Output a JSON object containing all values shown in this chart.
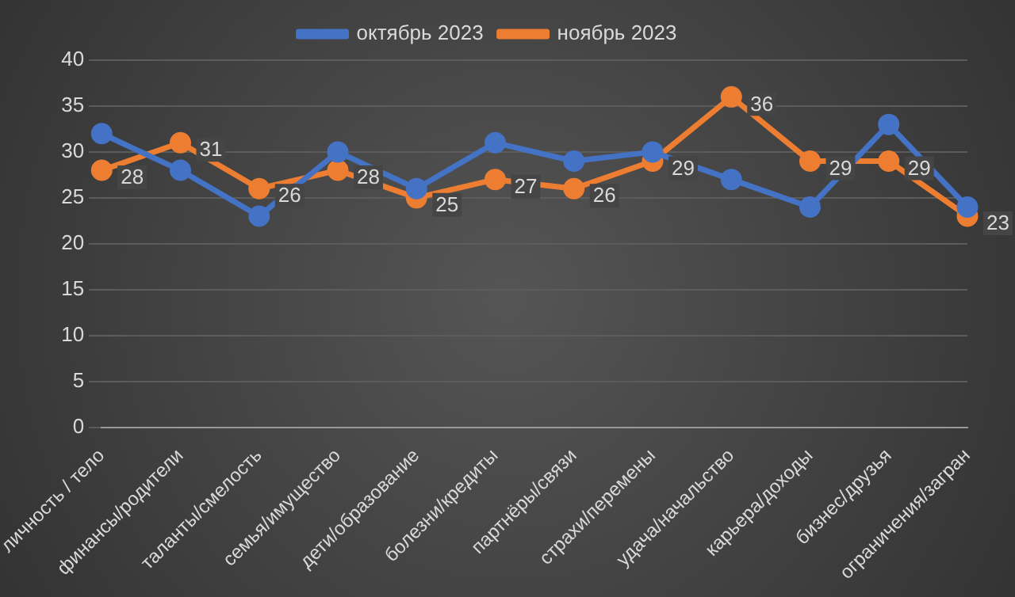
{
  "chart_data": {
    "type": "line",
    "categories": [
      "личность / тело",
      "финансы/родители",
      "таланты/смелость",
      "семья/имущество",
      "дети/образование",
      "болезни/кредиты",
      "партнёры/связи",
      "страхи/перемены",
      "удача/начальство",
      "карьера/доходы",
      "бизнес/друзья",
      "ограничения/загран"
    ],
    "series": [
      {
        "name": "октябрь 2023",
        "color": "#4472c4",
        "values": [
          32,
          28,
          23,
          30,
          26,
          31,
          29,
          30,
          27,
          24,
          33,
          24
        ]
      },
      {
        "name": "ноябрь 2023",
        "color": "#ed7d31",
        "values": [
          28,
          31,
          26,
          28,
          25,
          27,
          26,
          29,
          36,
          29,
          29,
          23
        ],
        "value_labels": [
          "28",
          "31",
          "26",
          "28",
          "25",
          "27",
          "26",
          "29",
          "36",
          "29",
          "29",
          "23"
        ]
      }
    ],
    "ylim": [
      0,
      40
    ],
    "yticks": [
      0,
      5,
      10,
      15,
      20,
      25,
      30,
      35,
      40
    ],
    "grid": "y",
    "legend": "top",
    "marker": "circle",
    "line_style": "solid"
  }
}
